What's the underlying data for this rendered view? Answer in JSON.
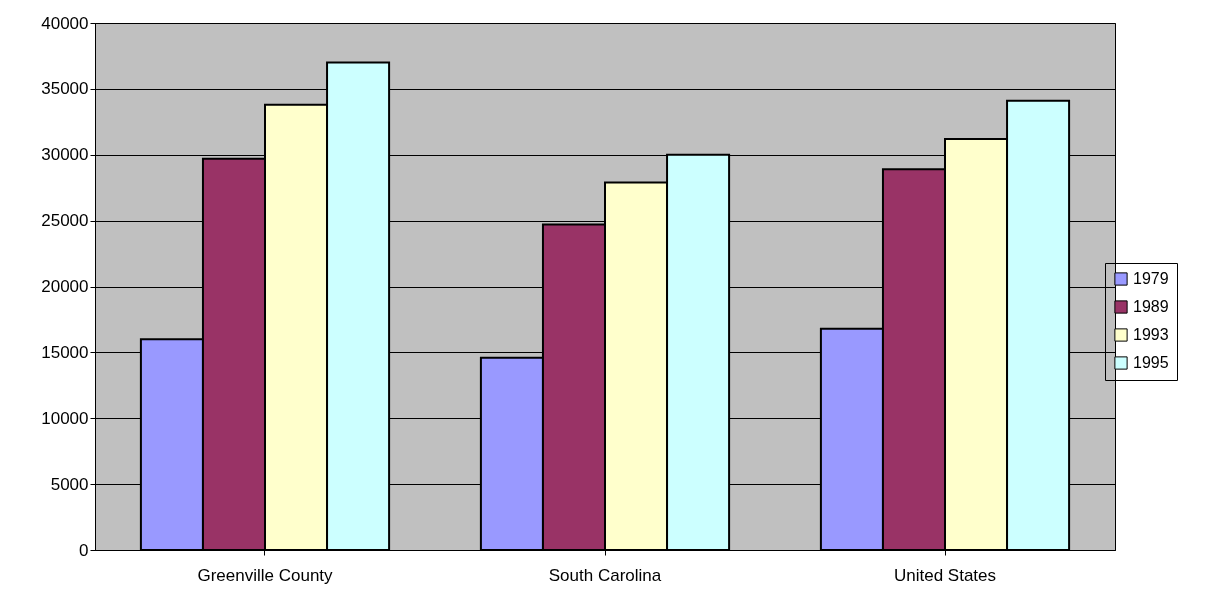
{
  "chart_data": {
    "type": "bar",
    "categories": [
      "Greenville County",
      "South Carolina",
      "United States"
    ],
    "series": [
      {
        "name": "1979",
        "color": "#9999ff",
        "values": [
          16000,
          14600,
          16800
        ]
      },
      {
        "name": "1989",
        "color": "#993366",
        "values": [
          29700,
          24700,
          28900
        ]
      },
      {
        "name": "1993",
        "color": "#ffffcc",
        "values": [
          33800,
          27900,
          31200
        ]
      },
      {
        "name": "1995",
        "color": "#ccffff",
        "values": [
          37000,
          30000,
          34100
        ]
      }
    ],
    "ylim": [
      0,
      40000
    ],
    "yticks": [
      0,
      5000,
      10000,
      15000,
      20000,
      25000,
      30000,
      35000,
      40000
    ],
    "grid": "y",
    "legend": "right"
  }
}
